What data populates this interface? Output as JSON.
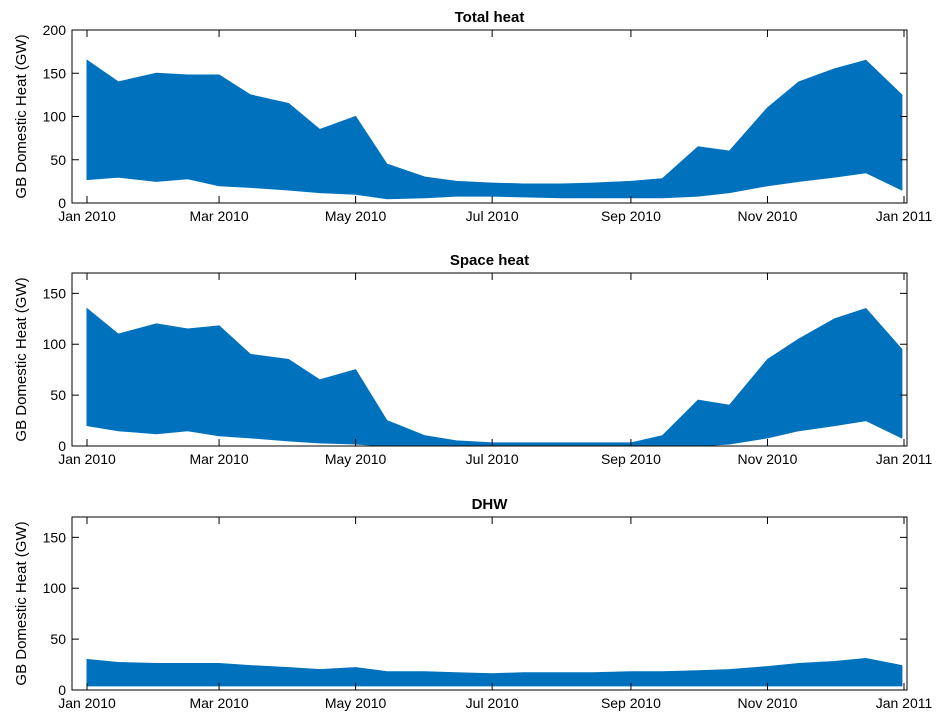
{
  "chart_data": [
    {
      "type": "area",
      "title": "Total heat",
      "xlabel": "",
      "ylabel": "GB Domestic Heat (GW)",
      "ylim": [
        0,
        200
      ],
      "yticks": [
        0,
        50,
        100,
        150,
        200
      ],
      "xticks": [
        "Jan 2010",
        "Mar 2010",
        "May 2010",
        "Jul 2010",
        "Sep 2010",
        "Nov 2010",
        "Jan 2011"
      ],
      "x": [
        "2010-01-01",
        "2010-01-15",
        "2010-02-01",
        "2010-02-15",
        "2010-03-01",
        "2010-03-15",
        "2010-04-01",
        "2010-04-15",
        "2010-05-01",
        "2010-05-15",
        "2010-06-01",
        "2010-06-15",
        "2010-07-01",
        "2010-07-15",
        "2010-08-01",
        "2010-08-15",
        "2010-09-01",
        "2010-09-15",
        "2010-10-01",
        "2010-10-15",
        "2010-11-01",
        "2010-11-15",
        "2010-12-01",
        "2010-12-15",
        "2010-12-31"
      ],
      "series": [
        {
          "max": [
            165,
            140,
            150,
            148,
            148,
            125,
            115,
            85,
            100,
            45,
            30,
            25,
            23,
            22,
            22,
            23,
            25,
            28,
            65,
            60,
            110,
            140,
            155,
            165,
            125
          ],
          "min": [
            27,
            30,
            25,
            28,
            20,
            18,
            15,
            12,
            10,
            5,
            6,
            8,
            8,
            7,
            6,
            6,
            6,
            6,
            8,
            12,
            20,
            25,
            30,
            35,
            15
          ]
        }
      ],
      "color": "#0072BD",
      "grid": false
    },
    {
      "type": "area",
      "title": "Space heat",
      "xlabel": "",
      "ylabel": "GB Domestic Heat (GW)",
      "ylim": [
        0,
        170
      ],
      "yticks": [
        0,
        50,
        100,
        150
      ],
      "xticks": [
        "Jan 2010",
        "Mar 2010",
        "May 2010",
        "Jul 2010",
        "Sep 2010",
        "Nov 2010",
        "Jan 2011"
      ],
      "x": [
        "2010-01-01",
        "2010-01-15",
        "2010-02-01",
        "2010-02-15",
        "2010-03-01",
        "2010-03-15",
        "2010-04-01",
        "2010-04-15",
        "2010-05-01",
        "2010-05-15",
        "2010-06-01",
        "2010-06-15",
        "2010-07-01",
        "2010-07-15",
        "2010-08-01",
        "2010-08-15",
        "2010-09-01",
        "2010-09-15",
        "2010-10-01",
        "2010-10-15",
        "2010-11-01",
        "2010-11-15",
        "2010-12-01",
        "2010-12-15",
        "2010-12-31"
      ],
      "series": [
        {
          "max": [
            135,
            110,
            120,
            115,
            118,
            90,
            85,
            65,
            75,
            25,
            10,
            5,
            3,
            3,
            3,
            3,
            3,
            10,
            45,
            40,
            85,
            105,
            125,
            135,
            95
          ],
          "min": [
            20,
            15,
            12,
            15,
            10,
            8,
            5,
            3,
            2,
            0,
            0,
            0,
            0,
            0,
            0,
            0,
            0,
            0,
            0,
            2,
            8,
            15,
            20,
            25,
            8
          ]
        }
      ],
      "color": "#0072BD",
      "grid": false
    },
    {
      "type": "area",
      "title": "DHW",
      "xlabel": "",
      "ylabel": "GB Domestic Heat (GW)",
      "ylim": [
        0,
        170
      ],
      "yticks": [
        0,
        50,
        100,
        150
      ],
      "xticks": [
        "Jan 2010",
        "Mar 2010",
        "May 2010",
        "Jul 2010",
        "Sep 2010",
        "Nov 2010",
        "Jan 2011"
      ],
      "x": [
        "2010-01-01",
        "2010-01-15",
        "2010-02-01",
        "2010-02-15",
        "2010-03-01",
        "2010-03-15",
        "2010-04-01",
        "2010-04-15",
        "2010-05-01",
        "2010-05-15",
        "2010-06-01",
        "2010-06-15",
        "2010-07-01",
        "2010-07-15",
        "2010-08-01",
        "2010-08-15",
        "2010-09-01",
        "2010-09-15",
        "2010-10-01",
        "2010-10-15",
        "2010-11-01",
        "2010-11-15",
        "2010-12-01",
        "2010-12-15",
        "2010-12-31"
      ],
      "series": [
        {
          "max": [
            30,
            27,
            26,
            26,
            26,
            24,
            22,
            20,
            22,
            18,
            18,
            17,
            16,
            17,
            17,
            17,
            18,
            18,
            19,
            20,
            23,
            26,
            28,
            31,
            24
          ],
          "min": [
            4,
            4,
            4,
            4,
            4,
            4,
            4,
            4,
            4,
            4,
            4,
            4,
            4,
            4,
            4,
            4,
            4,
            4,
            4,
            4,
            4,
            4,
            4,
            4,
            4
          ]
        }
      ],
      "color": "#0072BD",
      "grid": false
    }
  ]
}
